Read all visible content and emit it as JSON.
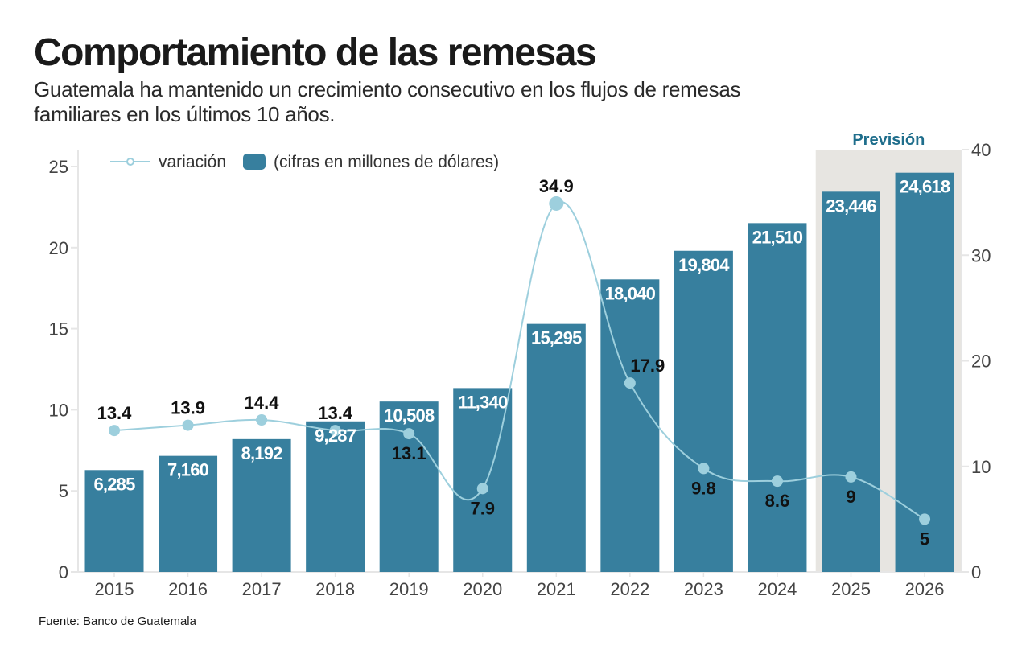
{
  "header": {
    "title": "Comportamiento de las remesas",
    "subtitle": "Guatemala ha mantenido un crecimiento consecutivo en los flujos de remesas familiares en los últimos 10 años."
  },
  "footer": {
    "source": "Fuente: Banco de Guatemala"
  },
  "colors": {
    "bar": "#377f9e",
    "line": "#9dcfdd",
    "forecast_band": "#e7e5e1",
    "forecast_text": "#1f6e8c",
    "axis": "#e6e6e6"
  },
  "chart_data": {
    "type": "bar",
    "title": "Comportamiento de las remesas",
    "categories": [
      "2015",
      "2016",
      "2017",
      "2018",
      "2019",
      "2020",
      "2021",
      "2022",
      "2023",
      "2024",
      "2025",
      "2026"
    ],
    "series": [
      {
        "name": "(cifras en millones de dólares)",
        "type": "bar",
        "axis": "left",
        "values": [
          6285,
          7160,
          8192,
          9287,
          10508,
          11340,
          15295,
          18040,
          19804,
          21510,
          23446,
          24618
        ],
        "labels": [
          "6,285",
          "7,160",
          "8,192",
          "9,287",
          "10,508",
          "11,340",
          "15,295",
          "18,040",
          "19,804",
          "21,510",
          "23,446",
          "24,618"
        ]
      },
      {
        "name": "variación",
        "type": "line",
        "axis": "right",
        "values": [
          13.4,
          13.9,
          14.4,
          13.4,
          13.1,
          7.9,
          34.9,
          17.9,
          9.8,
          8.6,
          9,
          5
        ],
        "labels": [
          "13.4",
          "13.9",
          "14.4",
          "13.4",
          "13.1",
          "7.9",
          "34.9",
          "17.9",
          "9.8",
          "8.6",
          "9",
          "5"
        ],
        "label_position": [
          "above",
          "above",
          "above",
          "above",
          "below",
          "below",
          "above",
          "above-right",
          "below",
          "below",
          "below",
          "below"
        ]
      }
    ],
    "left_axis": {
      "unit": "thousand millions USD",
      "ticks": [
        "0",
        "5",
        "10",
        "15",
        "20",
        "25"
      ],
      "ylim": [
        0,
        25
      ]
    },
    "right_axis": {
      "unit": "percent",
      "ticks": [
        "0",
        "10",
        "20",
        "30",
        "40"
      ],
      "ylim": [
        0,
        40
      ]
    },
    "legend": {
      "position": "top-left",
      "entries": [
        "variación",
        "(cifras en millones de dólares)"
      ]
    },
    "annotations": [
      {
        "text": "Previsión",
        "categories": [
          "2025",
          "2026"
        ],
        "type": "shaded-band"
      }
    ],
    "grid": false
  }
}
